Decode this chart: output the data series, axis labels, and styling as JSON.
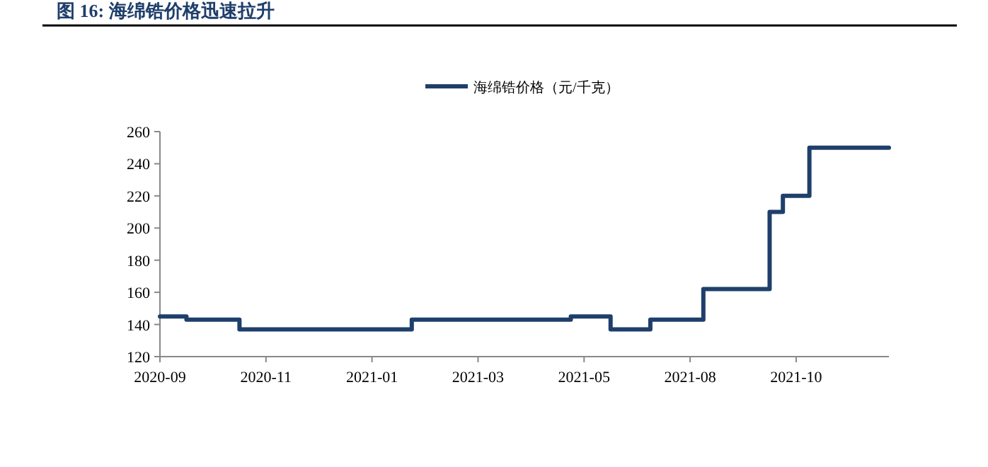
{
  "chart_data": {
    "type": "step",
    "title": "图 16:  海绵锆价格迅速拉升",
    "categories": [
      "2020-09",
      null,
      null,
      null,
      null,
      null,
      null,
      null,
      "2020-11",
      null,
      null,
      null,
      null,
      null,
      null,
      null,
      "2021-01",
      null,
      null,
      null,
      null,
      null,
      null,
      null,
      "2021-03",
      null,
      null,
      null,
      null,
      null,
      null,
      null,
      "2021-05",
      null,
      null,
      null,
      null,
      null,
      null,
      null,
      "2021-08",
      null,
      null,
      null,
      null,
      null,
      null,
      null,
      "2021-10",
      null,
      null,
      null,
      null,
      null,
      null,
      null
    ],
    "series": [
      {
        "name": "海绵锆价格（元/千克）",
        "color": "#1f3f6b",
        "values": [
          145,
          145,
          145,
          143,
          143,
          143,
          143,
          137,
          137,
          137,
          137,
          137,
          137,
          137,
          137,
          137,
          137,
          137,
          137,
          137,
          143,
          143,
          143,
          143,
          143,
          143,
          143,
          143,
          143,
          143,
          143,
          143,
          145,
          145,
          145,
          137,
          137,
          137,
          143,
          143,
          143,
          143,
          162,
          162,
          162,
          162,
          162,
          210,
          220,
          220,
          250,
          250,
          250,
          250,
          250,
          250
        ]
      }
    ],
    "ylim": [
      120,
      260
    ],
    "yticks": [
      120,
      140,
      160,
      180,
      200,
      220,
      240,
      260
    ],
    "grid": false,
    "legend": "top",
    "marker": "none",
    "line_style": "solid"
  }
}
